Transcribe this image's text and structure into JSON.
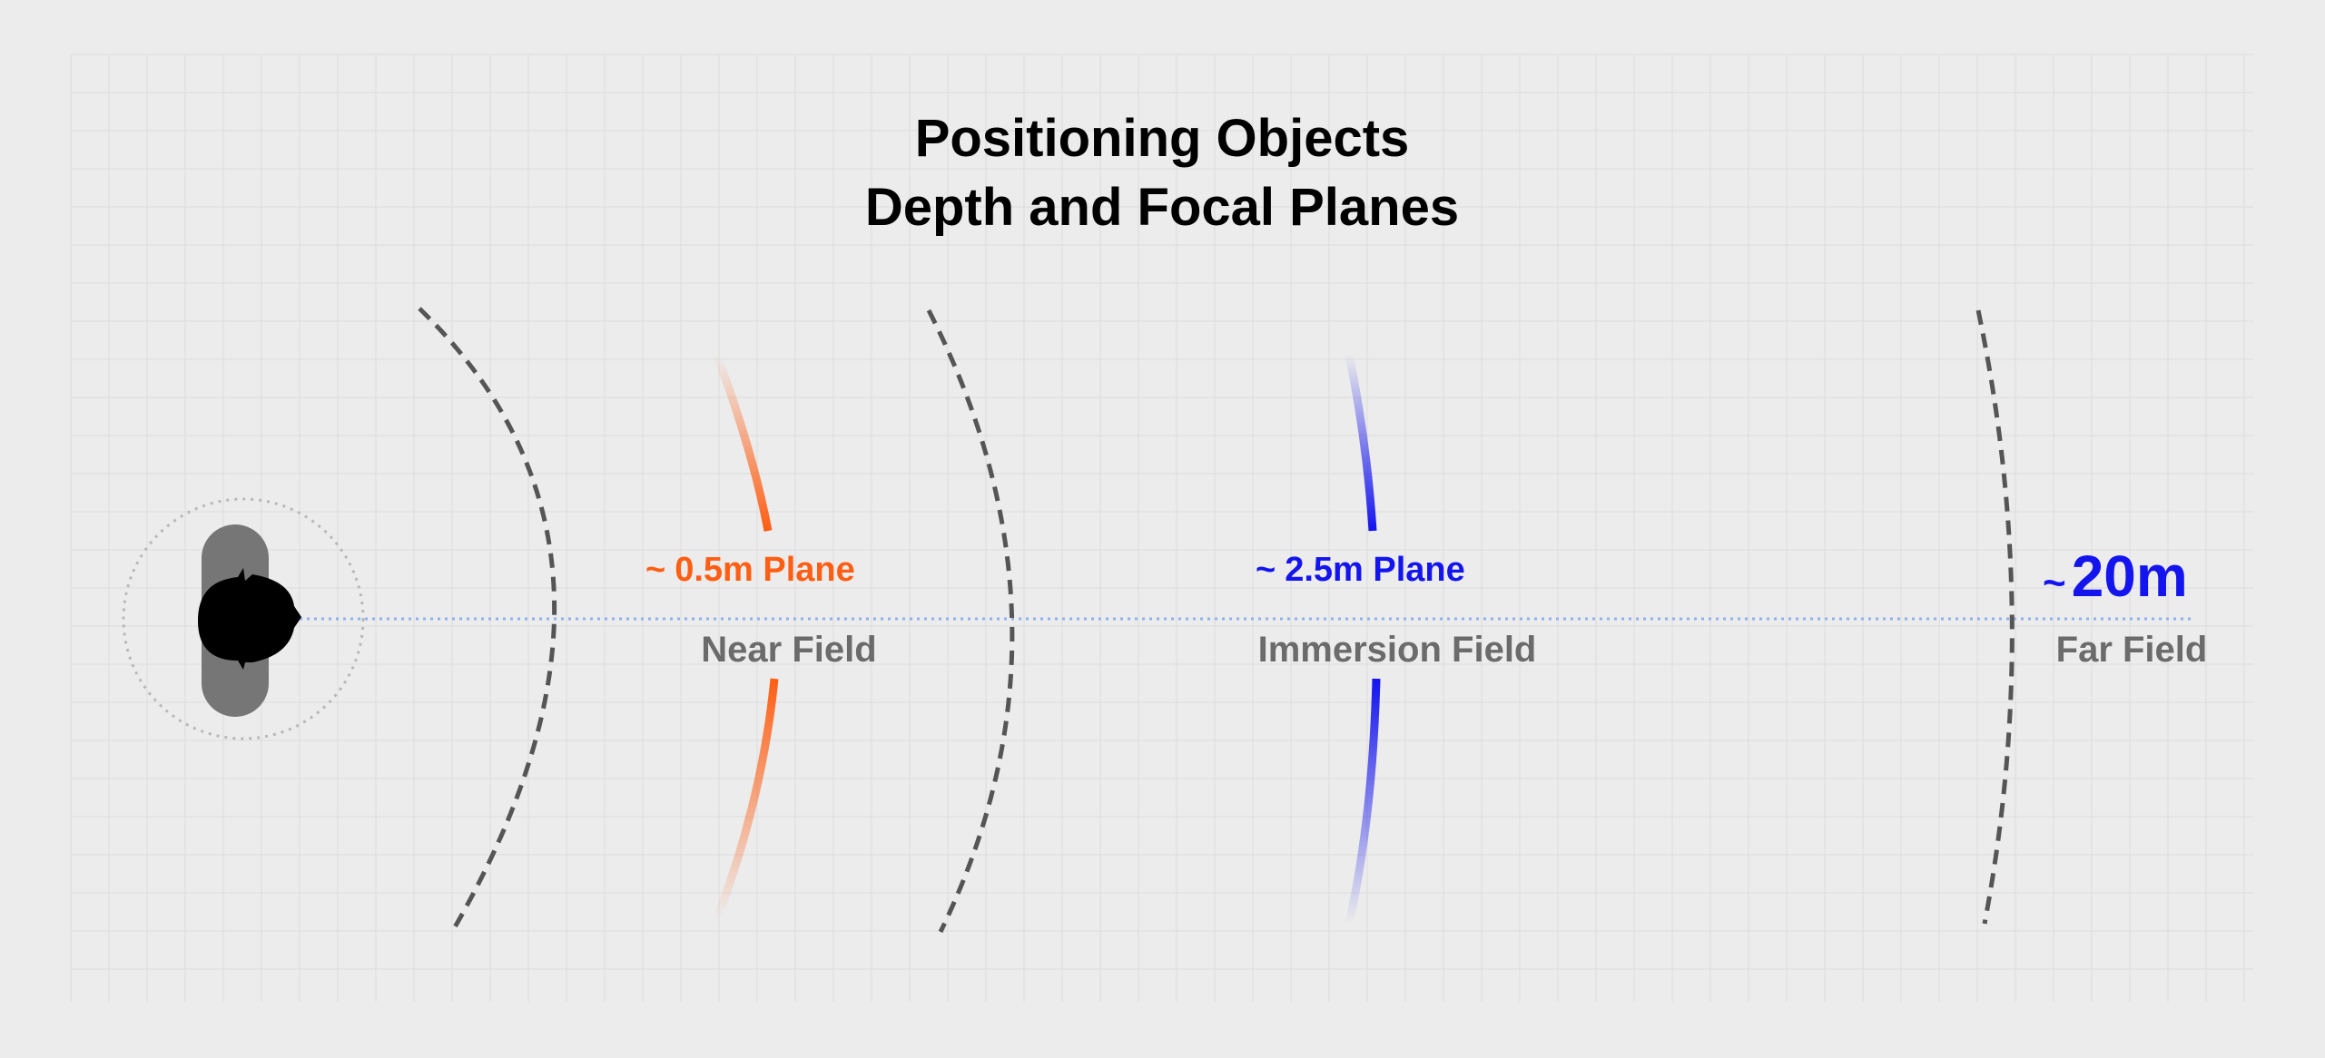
{
  "title": {
    "line1": "Positioning Objects",
    "line2": "Depth and Focal Planes"
  },
  "planes": {
    "near": {
      "tilde": "~",
      "value": "0.5m Plane",
      "color": "#ff5e14"
    },
    "immersion": {
      "tilde": "~",
      "value": "2.5m Plane",
      "color": "#1414ee"
    },
    "far": {
      "tilde": "~",
      "value": "20m",
      "color": "#1414ee"
    }
  },
  "fields": {
    "near": "Near Field",
    "immersion": "Immersion Field",
    "far": "Far Field"
  },
  "colors": {
    "background": "#ececec",
    "grid": "#dcdcdc",
    "boundary": "#555555",
    "sightline": "#8fb0f0",
    "head": "#000000",
    "headset": "#767676"
  },
  "icons": {
    "viewer": "user-head-top-view-icon"
  }
}
